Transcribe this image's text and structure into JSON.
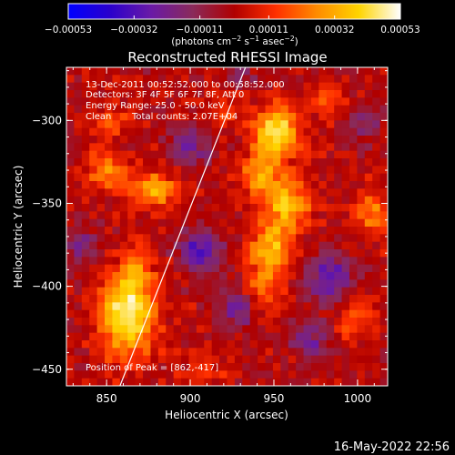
{
  "chart_data": {
    "type": "heatmap",
    "title": "Reconstructed RHESSI Image",
    "xlabel": "Heliocentric X (arcsec)",
    "ylabel": "Heliocentric Y (arcsec)",
    "xlim": [
      826,
      1018
    ],
    "ylim": [
      -460,
      -268
    ],
    "x_ticks": [
      850,
      900,
      950,
      1000
    ],
    "y_ticks": [
      -300,
      -350,
      -400,
      -450
    ],
    "x_tick_labels": [
      "850",
      "900",
      "950",
      "1000"
    ],
    "y_tick_labels": [
      "−300",
      "−350",
      "−400",
      "−450"
    ],
    "colorbar": {
      "min": -0.00053,
      "max": 0.00053,
      "ticks": [
        -0.00053,
        -0.00032,
        -0.00011,
        0.00011,
        0.00032,
        0.00053
      ],
      "tick_labels": [
        "−0.00053",
        "−0.00032",
        "−0.00011",
        "0.00011",
        "0.00032",
        "0.00053"
      ],
      "unit_prefix": "(photons cm",
      "unit_sup1": "−2",
      "unit_mid": " s",
      "unit_sup2": "−1",
      "unit_mid2": " asec",
      "unit_sup3": "−2",
      "unit_suffix": ")",
      "colors": [
        "#0000ff",
        "#2a00cc",
        "#6a1aa6",
        "#8a2a5a",
        "#b00000",
        "#ff3000",
        "#ff8c00",
        "#ffd400",
        "#ffffff"
      ]
    },
    "annotations": {
      "time_range": "13-Dec-2011 00:52:52.000 to 00:58:52.000",
      "detectors": "Detectors: 3F 4F 5F 6F 7F 8F, Att 0",
      "energy_range": "Energy Range: 25.0 - 50.0 keV",
      "clean_label": "Clean",
      "total_counts": "Total counts: 2.07E+04",
      "peak_position": "Position of Peak = [862,-417]"
    },
    "grid_cells": 42,
    "sources": [
      {
        "x": 862,
        "y": -417,
        "sx": 11,
        "sy": 17,
        "amp": 0.00053
      },
      {
        "x": 868,
        "y": -388,
        "sx": 7,
        "sy": 10,
        "amp": 0.00018
      },
      {
        "x": 952,
        "y": -307,
        "sx": 9,
        "sy": 11,
        "amp": 0.00047
      },
      {
        "x": 942,
        "y": -332,
        "sx": 8,
        "sy": 10,
        "amp": 0.00028
      },
      {
        "x": 958,
        "y": -352,
        "sx": 9,
        "sy": 11,
        "amp": 0.00038
      },
      {
        "x": 948,
        "y": -378,
        "sx": 8,
        "sy": 9,
        "amp": 0.00036
      },
      {
        "x": 944,
        "y": -400,
        "sx": 7,
        "sy": 9,
        "amp": 0.00024
      },
      {
        "x": 878,
        "y": -342,
        "sx": 11,
        "sy": 8,
        "amp": 0.0003
      },
      {
        "x": 850,
        "y": -330,
        "sx": 9,
        "sy": 9,
        "amp": 0.00022
      },
      {
        "x": 852,
        "y": -300,
        "sx": 8,
        "sy": 8,
        "amp": 0.00015
      },
      {
        "x": 922,
        "y": -295,
        "sx": 9,
        "sy": 7,
        "amp": 0.00015
      },
      {
        "x": 1008,
        "y": -355,
        "sx": 7,
        "sy": 9,
        "amp": 0.00026
      },
      {
        "x": 1000,
        "y": -418,
        "sx": 9,
        "sy": 12,
        "amp": 0.00014
      },
      {
        "x": 985,
        "y": -288,
        "sx": 8,
        "sy": 7,
        "amp": 0.00016
      },
      {
        "x": 910,
        "y": -450,
        "sx": 10,
        "sy": 7,
        "amp": 0.0001
      },
      {
        "x": 905,
        "y": -378,
        "sx": 9,
        "sy": 9,
        "amp": -0.00028
      },
      {
        "x": 900,
        "y": -316,
        "sx": 9,
        "sy": 9,
        "amp": -0.00022
      },
      {
        "x": 983,
        "y": -395,
        "sx": 10,
        "sy": 10,
        "amp": -0.0003
      },
      {
        "x": 972,
        "y": -432,
        "sx": 8,
        "sy": 8,
        "amp": -0.0002
      },
      {
        "x": 928,
        "y": -413,
        "sx": 8,
        "sy": 8,
        "amp": -0.0002
      },
      {
        "x": 836,
        "y": -375,
        "sx": 8,
        "sy": 8,
        "amp": -0.00016
      },
      {
        "x": 1005,
        "y": -302,
        "sx": 8,
        "sy": 8,
        "amp": -0.00015
      },
      {
        "x": 930,
        "y": -275,
        "sx": 8,
        "sy": 6,
        "amp": -0.00012
      }
    ],
    "limb_line": [
      [
        858,
        -460
      ],
      [
        933,
        -268
      ]
    ],
    "limb_color": "#ffffff",
    "frame_color": "#ffffff"
  },
  "footer": {
    "timestamp": "16-May-2022 22:56"
  }
}
